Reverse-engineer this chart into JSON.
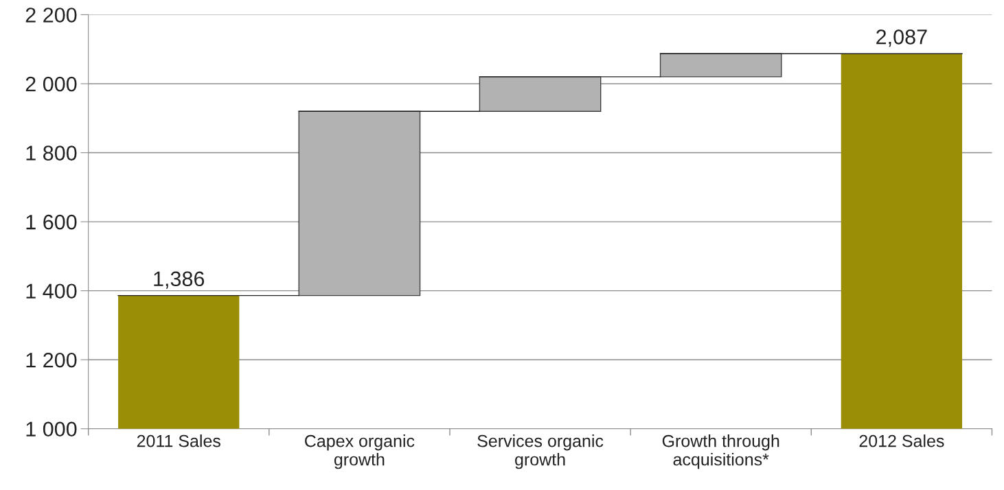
{
  "chart_data": {
    "type": "bar",
    "categories": [
      "2011 Sales",
      "Capex organic\ngrowth",
      "Services organic\ngrowth",
      "Growth through\nacquisitions*",
      "2012 Sales"
    ],
    "values": [
      1386,
      534,
      100,
      67,
      2087
    ],
    "base": [
      null,
      1386,
      1920,
      2020,
      null
    ],
    "colors": [
      "#998e06",
      "#b2b2b2",
      "#b2b2b2",
      "#b2b2b2",
      "#998e06"
    ],
    "value_labels": [
      "1,386",
      null,
      null,
      null,
      "2,087"
    ],
    "ylim": [
      1000,
      2200
    ],
    "yticks": [
      {
        "value": 1000,
        "label": "1 000"
      },
      {
        "value": 1200,
        "label": "1 200"
      },
      {
        "value": 1400,
        "label": "1 400"
      },
      {
        "value": 1600,
        "label": "1 600"
      },
      {
        "value": 1800,
        "label": "1 800"
      },
      {
        "value": 2000,
        "label": "2 000"
      },
      {
        "value": 2200,
        "label": "2 200"
      }
    ],
    "grid": "y"
  }
}
